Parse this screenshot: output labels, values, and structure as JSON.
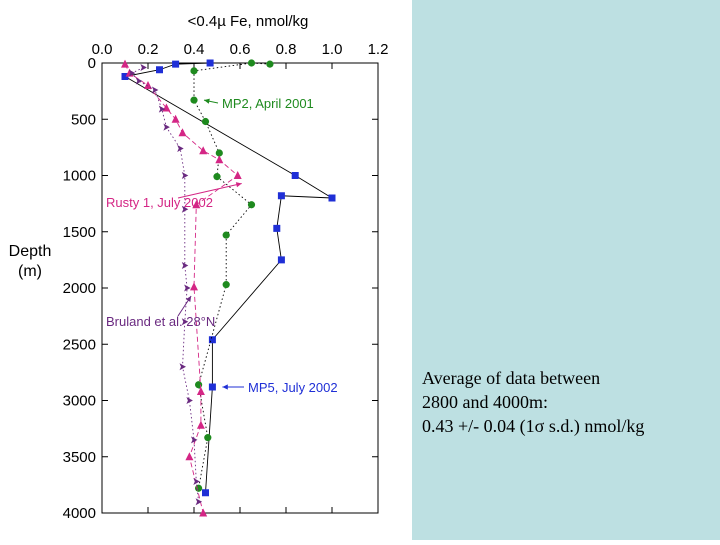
{
  "slide": {
    "panel_color": "#bde0e2",
    "note_lines": [
      "Average of data between",
      "2800 and 4000m:",
      "0.43 +/- 0.04 (1σ s.d.) nmol/kg"
    ]
  },
  "chart_data": {
    "type": "scatter",
    "title": "<0.4µ Fe, nmol/kg",
    "xlabel": "<0.4µ Fe, nmol/kg",
    "ylabel": "Depth (m)",
    "ylabel_line1": "Depth",
    "ylabel_line2": "(m)",
    "x_axis_position": "top",
    "y_axis_inverted": true,
    "xlim": [
      0.0,
      1.2
    ],
    "ylim": [
      0,
      4000
    ],
    "xticks": [
      "0.0",
      "0.2",
      "0.4",
      "0.6",
      "0.8",
      "1.0",
      "1.2"
    ],
    "yticks": [
      "0",
      "500",
      "1000",
      "1500",
      "2000",
      "2500",
      "3000",
      "3500",
      "4000"
    ],
    "grid": false,
    "series": [
      {
        "name": "MP5, July 2002",
        "color": "#1f2fd6",
        "marker": "square",
        "line": "solid",
        "line_color": "#000000",
        "points": [
          [
            0.47,
            0
          ],
          [
            0.32,
            10
          ],
          [
            0.25,
            60
          ],
          [
            0.1,
            120
          ],
          [
            0.84,
            1000
          ],
          [
            1.0,
            1200
          ],
          [
            0.78,
            1180
          ],
          [
            0.76,
            1470
          ],
          [
            0.78,
            1750
          ],
          [
            0.48,
            2460
          ],
          [
            0.48,
            2880
          ],
          [
            0.45,
            3820
          ]
        ]
      },
      {
        "name": "MP2, April 2001",
        "color": "#1e8a1e",
        "marker": "circle",
        "line": "dotted",
        "line_color": "#000000",
        "points": [
          [
            0.73,
            10
          ],
          [
            0.65,
            0
          ],
          [
            0.4,
            70
          ],
          [
            0.4,
            330
          ],
          [
            0.45,
            520
          ],
          [
            0.51,
            800
          ],
          [
            0.5,
            1010
          ],
          [
            0.65,
            1260
          ],
          [
            0.54,
            1530
          ],
          [
            0.54,
            1970
          ],
          [
            0.42,
            2860
          ],
          [
            0.46,
            3330
          ],
          [
            0.42,
            3780
          ]
        ]
      },
      {
        "name": "Rusty 1, July 2002",
        "color": "#d42685",
        "marker": "triangle",
        "line": "dashed",
        "line_color": "#d42685",
        "points": [
          [
            0.1,
            10
          ],
          [
            0.12,
            90
          ],
          [
            0.2,
            200
          ],
          [
            0.28,
            400
          ],
          [
            0.32,
            500
          ],
          [
            0.35,
            620
          ],
          [
            0.44,
            780
          ],
          [
            0.51,
            860
          ],
          [
            0.59,
            1000
          ],
          [
            0.41,
            1260
          ],
          [
            0.4,
            1990
          ],
          [
            0.43,
            2920
          ],
          [
            0.43,
            3220
          ],
          [
            0.38,
            3500
          ],
          [
            0.44,
            4000
          ]
        ]
      },
      {
        "name": "Bruland et al. 28°N",
        "color": "#6a2a80",
        "marker": "arrowhead",
        "line": "dotted",
        "line_color": "#6a2a80",
        "points": [
          [
            0.18,
            40
          ],
          [
            0.13,
            90
          ],
          [
            0.16,
            160
          ],
          [
            0.23,
            240
          ],
          [
            0.26,
            410
          ],
          [
            0.28,
            570
          ],
          [
            0.34,
            760
          ],
          [
            0.36,
            1000
          ],
          [
            0.36,
            1300
          ],
          [
            0.36,
            1800
          ],
          [
            0.37,
            2000
          ],
          [
            0.36,
            2300
          ],
          [
            0.35,
            2700
          ],
          [
            0.38,
            3000
          ],
          [
            0.4,
            3350
          ],
          [
            0.41,
            3720
          ],
          [
            0.42,
            3900
          ]
        ]
      }
    ],
    "annotations": [
      {
        "text": "MP2, April 2001",
        "color": "#1e8a1e",
        "series": "MP2, April 2001",
        "x": 0.4,
        "y": 330
      },
      {
        "text": "Rusty 1, July 2002",
        "color": "#d42685",
        "series": "Rusty 1, July 2002",
        "x": 0.59,
        "y": 1000
      },
      {
        "text": "Bruland et al. 28°N",
        "color": "#6a2a80",
        "series": "Bruland et al. 28°N",
        "x": 0.37,
        "y": 2000
      },
      {
        "text": "MP5, July 2002",
        "color": "#1f2fd6",
        "series": "MP5, July 2002",
        "x": 0.48,
        "y": 2880
      }
    ]
  }
}
